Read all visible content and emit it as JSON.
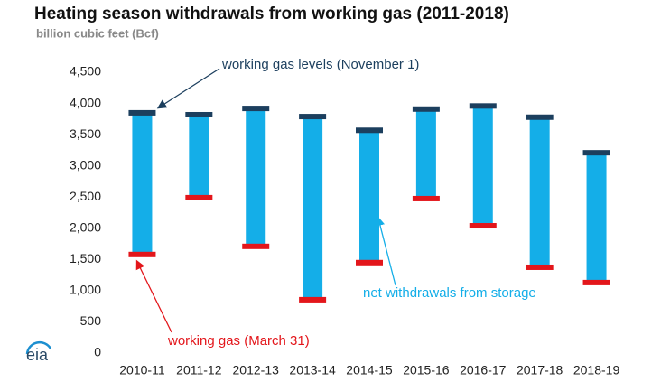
{
  "chart_data": {
    "type": "floating-range",
    "title": "Heating season withdrawals from working gas (2011-2018)",
    "subtitle": "billion cubic feet (Bcf)",
    "categories": [
      "2010-11",
      "2011-12",
      "2012-13",
      "2013-14",
      "2014-15",
      "2015-16",
      "2016-17",
      "2017-18",
      "2018-19"
    ],
    "series": [
      {
        "name": "working gas levels (November 1)",
        "color": "#1c3f5e",
        "values": [
          3850,
          3820,
          3920,
          3790,
          3570,
          3910,
          3960,
          3780,
          3210
        ]
      },
      {
        "name": "working gas (March 31)",
        "color": "#e3161b",
        "values": [
          1580,
          2490,
          1710,
          855,
          1450,
          2475,
          2040,
          1375,
          1130
        ]
      }
    ],
    "range_label": "net withdrawals from storage",
    "range_color": "#14aee8",
    "ylim": [
      0,
      4500
    ],
    "yticks": [
      0,
      500,
      {
        "value": 1000,
        "label": "1,000"
      },
      {
        "value": 1500,
        "label": "1,500"
      },
      {
        "value": 2000,
        "label": "2,000"
      },
      {
        "value": 2500,
        "label": "2,500"
      },
      {
        "value": 3000,
        "label": "3,000"
      },
      {
        "value": 3500,
        "label": "3,500"
      },
      {
        "value": 4000,
        "label": "4,000"
      },
      {
        "value": 4500,
        "label": "4,500"
      }
    ],
    "grid": false,
    "logo": "eia"
  }
}
